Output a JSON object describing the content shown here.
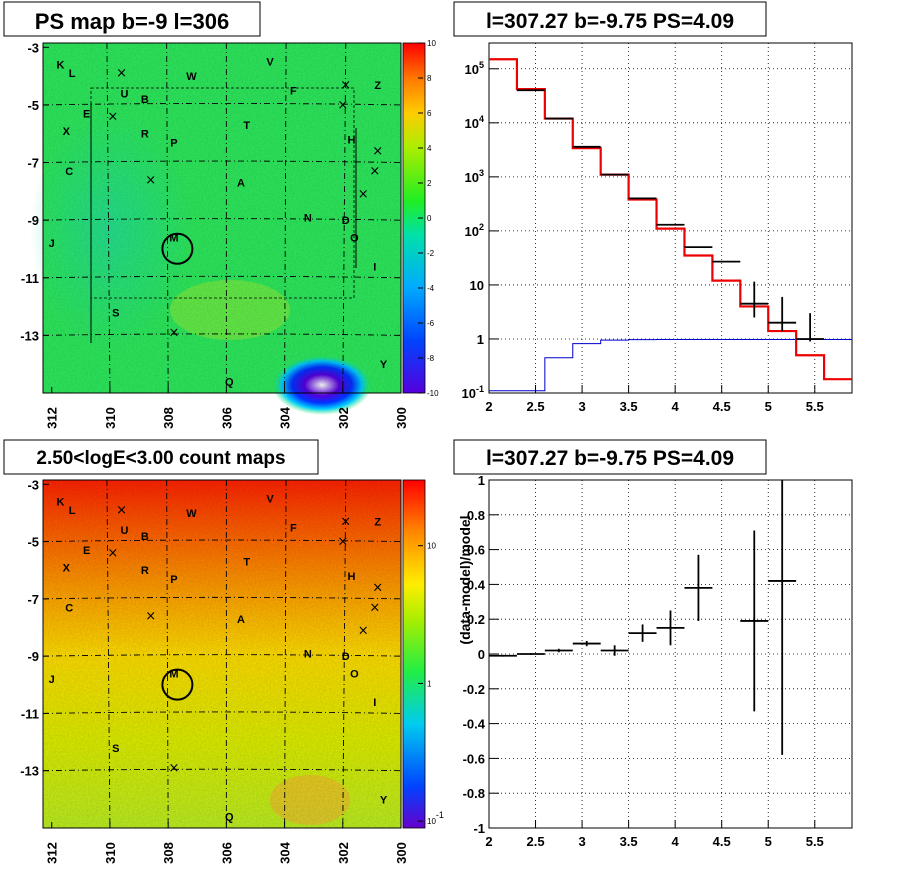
{
  "titles": {
    "ps_map": "PS map b=-9 l=306",
    "spectrum": "l=307.27 b=-9.75 PS=4.09",
    "count_map": "2.50<logE<3.00 count maps",
    "residual": "l=307.27 b=-9.75 PS=4.09"
  },
  "chart_data": [
    {
      "type": "heatmap",
      "name": "ps-map",
      "x_ticks": [
        "312",
        "310",
        "308",
        "306",
        "304",
        "302",
        "300"
      ],
      "y_ticks": [
        "-3",
        "-5",
        "-7",
        "-9",
        "-11",
        "-13"
      ],
      "xlim": [
        312,
        300
      ],
      "ylim": [
        -3,
        -15
      ],
      "colorbar": {
        "min": -10,
        "max": 10,
        "ticks": [
          "10",
          "8",
          "6",
          "4",
          "2",
          "0",
          "-2",
          "-4",
          "-6",
          "-8",
          "-10"
        ]
      },
      "sources": [
        {
          "label": "K",
          "l": 311.7,
          "b": -3.6
        },
        {
          "label": "L",
          "l": 311.3,
          "b": -3.9
        },
        {
          "label": "U",
          "l": 309.5,
          "b": -4.6
        },
        {
          "label": "B",
          "l": 308.8,
          "b": -4.8
        },
        {
          "label": "W",
          "l": 307.2,
          "b": -4.0
        },
        {
          "label": "V",
          "l": 304.5,
          "b": -3.5
        },
        {
          "label": "F",
          "l": 303.7,
          "b": -4.5
        },
        {
          "label": "Z",
          "l": 300.8,
          "b": -4.3
        },
        {
          "label": "E",
          "l": 310.8,
          "b": -5.3
        },
        {
          "label": "X",
          "l": 311.5,
          "b": -5.9
        },
        {
          "label": "R",
          "l": 308.8,
          "b": -6.0
        },
        {
          "label": "P",
          "l": 307.8,
          "b": -6.3
        },
        {
          "label": "T",
          "l": 305.3,
          "b": -5.7
        },
        {
          "label": "H",
          "l": 301.7,
          "b": -6.2
        },
        {
          "label": "C",
          "l": 311.4,
          "b": -7.3
        },
        {
          "label": "A",
          "l": 305.5,
          "b": -7.7
        },
        {
          "label": "N",
          "l": 303.2,
          "b": -8.9
        },
        {
          "label": "D",
          "l": 301.9,
          "b": -9.0
        },
        {
          "label": "O",
          "l": 301.6,
          "b": -9.6
        },
        {
          "label": "J",
          "l": 312.0,
          "b": -9.8
        },
        {
          "label": "M",
          "l": 307.8,
          "b": -9.6
        },
        {
          "label": "I",
          "l": 300.9,
          "b": -10.6
        },
        {
          "label": "S",
          "l": 309.8,
          "b": -12.2
        },
        {
          "label": "Q",
          "l": 305.9,
          "b": -14.6
        },
        {
          "label": "Y",
          "l": 300.6,
          "b": -14.0
        }
      ],
      "circle": {
        "l": 307.27,
        "b": -9.75
      }
    },
    {
      "type": "line",
      "name": "spectrum",
      "xlim": [
        2,
        5.9
      ],
      "ylim": [
        0.1,
        300000
      ],
      "y_scale": "log",
      "x_ticks": [
        "2",
        "2.5",
        "3",
        "3.5",
        "4",
        "4.5",
        "5",
        "5.5"
      ],
      "y_ticks": [
        "10^-1",
        "1",
        "10",
        "10^2",
        "10^3",
        "10^4",
        "10^5"
      ],
      "grid": true,
      "data_points": [
        {
          "x": 2.45,
          "y": 40000,
          "xerr": 0.15,
          "yerr_lo": 0.05,
          "yerr_hi": 0.05
        },
        {
          "x": 2.75,
          "y": 12000,
          "xerr": 0.15
        },
        {
          "x": 3.05,
          "y": 3600,
          "xerr": 0.15
        },
        {
          "x": 3.35,
          "y": 1100,
          "xerr": 0.15
        },
        {
          "x": 3.65,
          "y": 400,
          "xerr": 0.15,
          "yerr_lo": 0.03,
          "yerr_hi": 0.03
        },
        {
          "x": 3.95,
          "y": 130,
          "xerr": 0.15,
          "yerr_lo": 0.06,
          "yerr_hi": 0.06
        },
        {
          "x": 4.25,
          "y": 50,
          "xerr": 0.15,
          "yerr_lo": 0.1,
          "yerr_hi": 0.1
        },
        {
          "x": 4.55,
          "y": 27,
          "xerr": 0.15,
          "yerr_lo": 0.15,
          "yerr_hi": 0.15
        },
        {
          "x": 4.85,
          "y": 4.5,
          "xerr": 0.15,
          "yerr_lo": 2.0,
          "yerr_hi": 7.0
        },
        {
          "x": 5.15,
          "y": 2.0,
          "xerr": 0.15,
          "yerr_lo": 0.6,
          "yerr_hi": 4.0
        },
        {
          "x": 5.45,
          "y": 1.0,
          "xerr": 0.15,
          "yerr_lo": 0.1,
          "yerr_hi": 2.0
        }
      ],
      "model": {
        "color": "#ee0000",
        "edges": [
          2.0,
          2.3,
          2.6,
          2.9,
          3.2,
          3.5,
          3.8,
          4.1,
          4.4,
          4.7,
          5.0,
          5.3,
          5.6,
          5.9
        ],
        "values": [
          150000,
          42000,
          12000,
          3400,
          1100,
          380,
          110,
          35,
          12,
          4.0,
          1.4,
          0.5,
          0.18
        ]
      },
      "background": {
        "color": "#0000cc",
        "edges": [
          2.0,
          2.3,
          2.6,
          2.9,
          3.2,
          3.5,
          3.8,
          4.1,
          4.4,
          4.7,
          5.0,
          5.3,
          5.6,
          5.9
        ],
        "values": [
          0.11,
          0.11,
          0.45,
          0.82,
          0.95,
          0.97,
          0.98,
          0.98,
          0.98,
          0.98,
          0.98,
          0.98,
          0.98
        ]
      }
    },
    {
      "type": "heatmap",
      "name": "count-map",
      "x_ticks": [
        "312",
        "310",
        "308",
        "306",
        "304",
        "302",
        "300"
      ],
      "y_ticks": [
        "-3",
        "-5",
        "-7",
        "-9",
        "-11",
        "-13"
      ],
      "colorbar": {
        "scale": "log",
        "ticks": [
          "10",
          "1",
          "10^-1"
        ]
      }
    },
    {
      "type": "scatter",
      "name": "residual",
      "ylabel": "(data-model)/model",
      "xlim": [
        2,
        5.9
      ],
      "ylim": [
        -1,
        1
      ],
      "x_ticks": [
        "2",
        "2.5",
        "3",
        "3.5",
        "4",
        "4.5",
        "5",
        "5.5"
      ],
      "y_ticks": [
        "1",
        "0.8",
        "0.6",
        "0.4",
        "0.2",
        "0",
        "-0.2",
        "-0.4",
        "-0.6",
        "-0.8",
        "-1"
      ],
      "grid": true,
      "points": [
        {
          "x": 2.15,
          "y": -0.01,
          "xerr": 0.15,
          "yerr": 0.005
        },
        {
          "x": 2.45,
          "y": 0.0,
          "xerr": 0.15,
          "yerr": 0.005
        },
        {
          "x": 2.75,
          "y": 0.02,
          "xerr": 0.15,
          "yerr": 0.01
        },
        {
          "x": 3.05,
          "y": 0.06,
          "xerr": 0.15,
          "yerr": 0.015
        },
        {
          "x": 3.35,
          "y": 0.02,
          "xerr": 0.15,
          "yerr": 0.03
        },
        {
          "x": 3.65,
          "y": 0.12,
          "xerr": 0.15,
          "yerr": 0.05
        },
        {
          "x": 3.95,
          "y": 0.15,
          "xerr": 0.15,
          "yerr": 0.1
        },
        {
          "x": 4.25,
          "y": 0.38,
          "xerr": 0.15,
          "yerr": 0.19
        },
        {
          "x": 4.85,
          "y": 0.19,
          "xerr": 0.15,
          "yerr": 0.52
        },
        {
          "x": 5.15,
          "y": 0.42,
          "xerr": 0.15,
          "yerr": 1.0
        }
      ]
    }
  ]
}
